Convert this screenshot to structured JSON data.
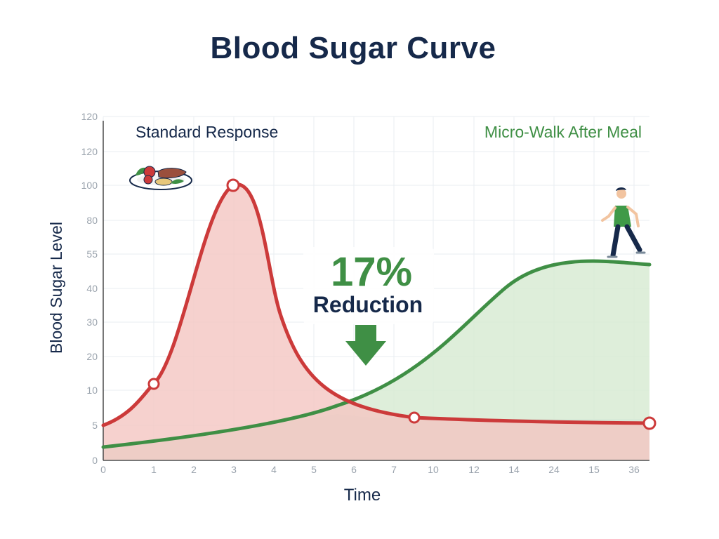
{
  "title": "Blood Sugar Curve",
  "chart_data": {
    "type": "line",
    "title": "Blood Sugar Curve",
    "xlabel": "Time",
    "ylabel": "Blood Sugar Level",
    "x_tick_labels": [
      "0",
      "1",
      "2",
      "3",
      "4",
      "5",
      "6",
      "7",
      "10",
      "12",
      "14",
      "24",
      "15",
      "36"
    ],
    "y_tick_labels": [
      "0",
      "5",
      "10",
      "20",
      "30",
      "40",
      "55",
      "80",
      "100",
      "120",
      "120"
    ],
    "ylim": [
      0,
      120
    ],
    "grid": true,
    "series": [
      {
        "name": "Standard Response",
        "color": "#cc3a3a",
        "fill": "#f4c5c2",
        "x_index": [
          0,
          1,
          2,
          3,
          4,
          5,
          6,
          7,
          8,
          9,
          10,
          11,
          12,
          13
        ],
        "values": [
          5,
          10,
          35,
          100,
          39,
          10,
          5,
          4.5,
          4.3,
          4.2,
          4.1,
          4.05,
          4,
          4
        ],
        "markers_x_index": [
          1,
          3,
          7.8,
          13.5
        ]
      },
      {
        "name": "Micro-Walk After Meal",
        "color": "#3f8f45",
        "fill": "#d8ebd3",
        "x_index": [
          0,
          1,
          2,
          3,
          4,
          5,
          6,
          7,
          8,
          9,
          10,
          11,
          12,
          13.5
        ],
        "values": [
          1.5,
          2,
          3,
          3.5,
          4,
          5,
          6,
          8,
          12,
          20,
          30,
          40,
          40,
          40
        ]
      }
    ],
    "annotations": {
      "percent": "17%",
      "label": "Reduction"
    }
  }
}
